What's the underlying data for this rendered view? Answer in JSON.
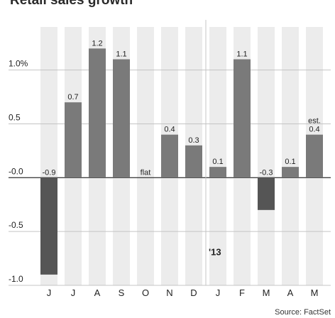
{
  "chart_data": {
    "type": "bar",
    "title": "Retail sales growth",
    "categories": [
      "J",
      "J",
      "A",
      "S",
      "O",
      "N",
      "D",
      "J",
      "F",
      "M",
      "A",
      "M"
    ],
    "values": [
      -0.9,
      0.7,
      1.2,
      1.1,
      0.0,
      0.4,
      0.3,
      0.1,
      1.1,
      -0.3,
      0.1,
      0.4
    ],
    "value_labels": [
      "-0.9",
      "0.7",
      "1.2",
      "1.1",
      "flat",
      "0.4",
      "0.3",
      "0.1",
      "1.1",
      "-0.3",
      "0.1",
      "0.4"
    ],
    "annotations": [
      {
        "category_index": 11,
        "text": "est."
      },
      {
        "category_index": 7,
        "text": "'13"
      }
    ],
    "y_ticks": [
      {
        "value": 1.0,
        "label": "1.0%"
      },
      {
        "value": 0.5,
        "label": "0.5"
      },
      {
        "value": 0.0,
        "label": "-0.0"
      },
      {
        "value": -0.5,
        "label": "-0.5"
      },
      {
        "value": -1.0,
        "label": "-1.0"
      }
    ],
    "ylim": [
      -1.0,
      1.4
    ],
    "xlabel": "",
    "ylabel": "",
    "grid": true,
    "colors": {
      "positive_bar": "#7a7a7a",
      "negative_bar": "#555555",
      "column_band": "#ececec",
      "gridline": "#c4c4c4",
      "zero_line": "#444444"
    }
  },
  "source": "Source: FactSet"
}
